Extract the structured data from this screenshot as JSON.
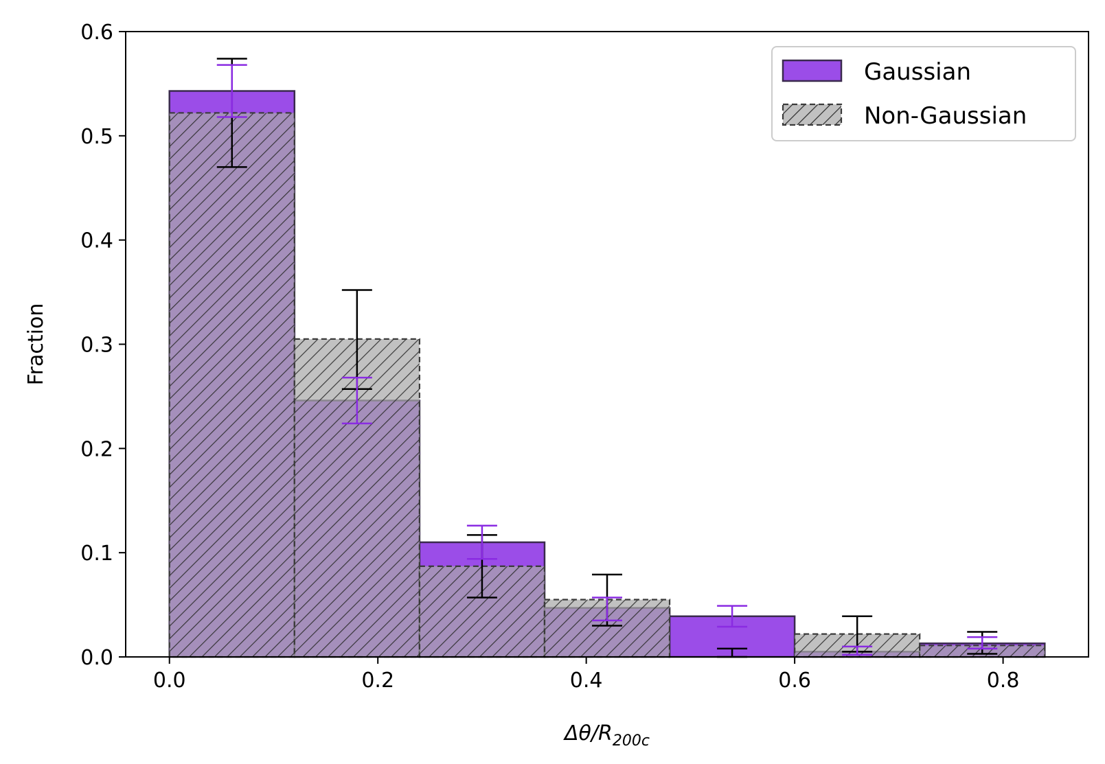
{
  "chart_data": {
    "type": "bar",
    "title": "",
    "xlabel": "Δθ/R200c",
    "xlabel_main": "Δθ/R",
    "xlabel_sub": "200c",
    "ylabel": "Fraction",
    "xlim": [
      -0.042,
      0.882
    ],
    "ylim": [
      0.0,
      0.6
    ],
    "xticks": [
      0.0,
      0.2,
      0.4,
      0.6,
      0.8
    ],
    "xtick_labels": [
      "0.0",
      "0.2",
      "0.4",
      "0.6",
      "0.8"
    ],
    "yticks": [
      0.0,
      0.1,
      0.2,
      0.3,
      0.4,
      0.5,
      0.6
    ],
    "ytick_labels": [
      "0.0",
      "0.1",
      "0.2",
      "0.3",
      "0.4",
      "0.5",
      "0.6"
    ],
    "bin_edges": [
      0.0,
      0.12,
      0.24,
      0.36,
      0.48,
      0.6,
      0.72,
      0.84
    ],
    "grid": false,
    "legend_position": "top-right",
    "series": [
      {
        "name": "Gaussian",
        "values": [
          0.543,
          0.246,
          0.11,
          0.047,
          0.039,
          0.005,
          0.013
        ],
        "error_low": [
          0.518,
          0.224,
          0.094,
          0.035,
          0.029,
          0.002,
          0.008
        ],
        "error_high": [
          0.568,
          0.268,
          0.126,
          0.057,
          0.049,
          0.01,
          0.019
        ],
        "color": "#9b4de8",
        "edge_color": "#3a2a4e",
        "error_color": "#8a2be2",
        "hatch": false
      },
      {
        "name": "Non-Gaussian",
        "values": [
          0.522,
          0.305,
          0.087,
          0.055,
          0.0,
          0.022,
          0.011
        ],
        "error_low": [
          0.47,
          0.257,
          0.057,
          0.03,
          0.0,
          0.005,
          0.003
        ],
        "error_high": [
          0.574,
          0.352,
          0.117,
          0.079,
          0.008,
          0.039,
          0.024
        ],
        "color": "#a9a9a9",
        "edge_color": "#3a3a3a",
        "error_color": "#000000",
        "hatch": true
      }
    ]
  }
}
